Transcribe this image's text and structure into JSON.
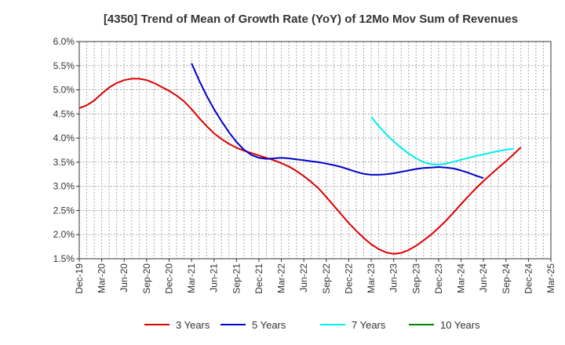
{
  "chart_data": {
    "type": "line",
    "title": "[4350]  Trend of Mean of Growth Rate (YoY) of 12Mo Mov Sum of Revenues",
    "xlabel": "",
    "ylabel": "",
    "ylim": [
      1.5,
      6.0
    ],
    "y_ticks": [
      "1.5%",
      "2.0%",
      "2.5%",
      "3.0%",
      "3.5%",
      "4.0%",
      "4.5%",
      "5.0%",
      "5.5%",
      "6.0%"
    ],
    "x_tick_labels": [
      "Dec-19",
      "Mar-20",
      "Jun-20",
      "Sep-20",
      "Dec-20",
      "Mar-21",
      "Jun-21",
      "Sep-21",
      "Dec-21",
      "Mar-22",
      "Jun-22",
      "Sep-22",
      "Dec-22",
      "Mar-23",
      "Jun-23",
      "Sep-23",
      "Dec-23",
      "Mar-24",
      "Jun-24",
      "Sep-24",
      "Dec-24",
      "Mar-25"
    ],
    "grid": true,
    "legend_position": "bottom",
    "series": [
      {
        "name": "3 Years",
        "color": "#dd0000",
        "start_index": 0,
        "values": [
          4.62,
          4.68,
          4.78,
          4.92,
          5.05,
          5.14,
          5.2,
          5.23,
          5.23,
          5.2,
          5.14,
          5.06,
          4.98,
          4.88,
          4.76,
          4.6,
          4.42,
          4.25,
          4.1,
          3.98,
          3.88,
          3.8,
          3.74,
          3.69,
          3.64,
          3.59,
          3.54,
          3.48,
          3.41,
          3.32,
          3.21,
          3.09,
          2.95,
          2.78,
          2.6,
          2.42,
          2.24,
          2.08,
          1.93,
          1.8,
          1.7,
          1.63,
          1.6,
          1.62,
          1.68,
          1.77,
          1.88,
          2.0,
          2.14,
          2.29,
          2.46,
          2.63,
          2.8,
          2.96,
          3.11,
          3.25,
          3.39,
          3.52,
          3.66,
          3.81
        ]
      },
      {
        "name": "5 Years",
        "color": "#0000cc",
        "start_index": 15,
        "values": [
          5.55,
          5.2,
          4.88,
          4.6,
          4.35,
          4.12,
          3.92,
          3.76,
          3.65,
          3.59,
          3.57,
          3.58,
          3.59,
          3.58,
          3.56,
          3.54,
          3.52,
          3.5,
          3.47,
          3.44,
          3.4,
          3.35,
          3.3,
          3.26,
          3.24,
          3.24,
          3.25,
          3.27,
          3.3,
          3.33,
          3.36,
          3.38,
          3.39,
          3.4,
          3.39,
          3.37,
          3.33,
          3.28,
          3.22,
          3.17
        ]
      },
      {
        "name": "7 Years",
        "color": "#00eeee",
        "start_index": 39,
        "values": [
          4.44,
          4.25,
          4.08,
          3.93,
          3.8,
          3.68,
          3.58,
          3.5,
          3.46,
          3.45,
          3.47,
          3.51,
          3.55,
          3.59,
          3.63,
          3.66,
          3.7,
          3.73,
          3.76,
          3.78
        ]
      },
      {
        "name": "10 Years",
        "color": "#008800",
        "start_index": 0,
        "values": []
      }
    ]
  }
}
